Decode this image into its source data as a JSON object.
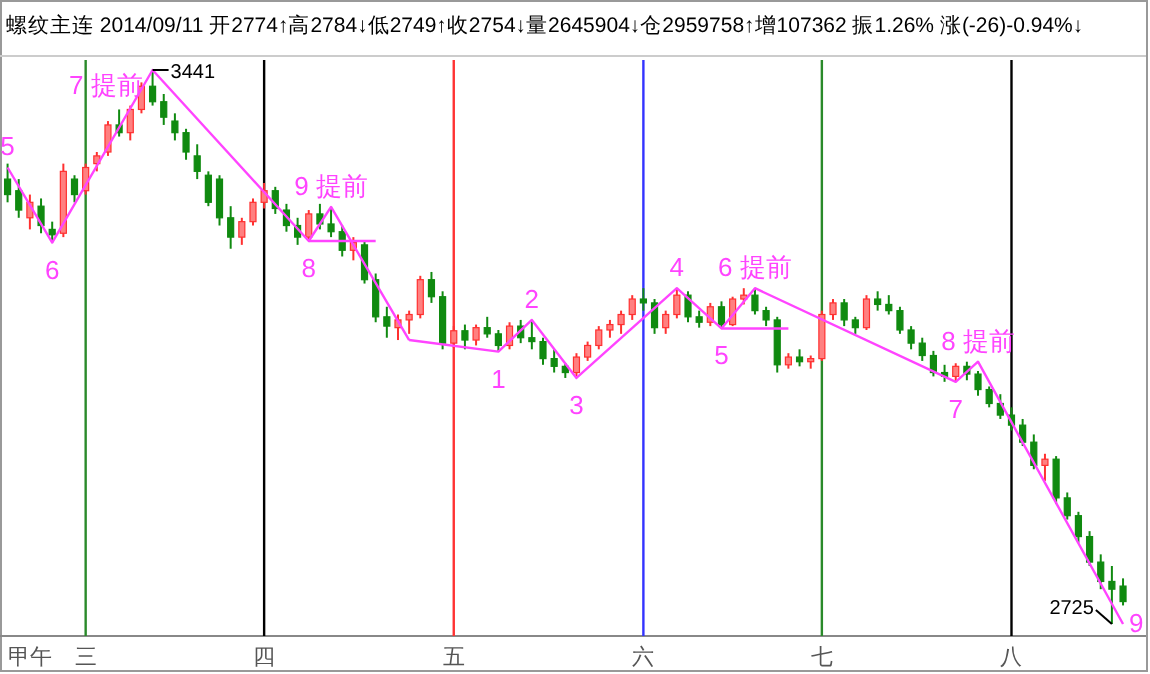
{
  "chart_data": {
    "type": "candlestick",
    "title": "螺纹主连 2014/09/11 开2774↑高2784↓低2749↑收2754↓量2645904↓仓2959758↑增107362 振1.26% 涨(-26)-0.94%↓",
    "categories": [
      null,
      null,
      "甲午",
      null,
      null,
      null,
      null,
      "三",
      null,
      null,
      null,
      null,
      null,
      null,
      null,
      null,
      null,
      null,
      null,
      null,
      null,
      null,
      null,
      "四",
      null,
      null,
      null,
      null,
      null,
      null,
      null,
      null,
      null,
      null,
      null,
      null,
      null,
      null,
      null,
      null,
      "五",
      null,
      null,
      null,
      null,
      null,
      null,
      null,
      null,
      null,
      null,
      null,
      null,
      null,
      null,
      null,
      null,
      "六",
      null,
      null,
      null,
      null,
      null,
      null,
      null,
      null,
      null,
      null,
      null,
      null,
      null,
      null,
      null,
      "七",
      null,
      null,
      null,
      null,
      null,
      null,
      null,
      null,
      null,
      null,
      null,
      null,
      null,
      null,
      null,
      null,
      "八",
      null,
      null,
      null,
      null,
      null,
      null,
      null,
      null,
      null,
      null
    ],
    "ohlc": [
      [
        3300,
        3320,
        3270,
        3280
      ],
      [
        3285,
        3300,
        3250,
        3260
      ],
      [
        3250,
        3280,
        3235,
        3270
      ],
      [
        3265,
        3275,
        3230,
        3240
      ],
      [
        3235,
        3245,
        3218,
        3228
      ],
      [
        3230,
        3320,
        3225,
        3310
      ],
      [
        3300,
        3305,
        3270,
        3280
      ],
      [
        3285,
        3320,
        3280,
        3315
      ],
      [
        3320,
        3335,
        3310,
        3330
      ],
      [
        3335,
        3375,
        3330,
        3370
      ],
      [
        3370,
        3390,
        3355,
        3360
      ],
      [
        3360,
        3395,
        3350,
        3390
      ],
      [
        3390,
        3425,
        3385,
        3420
      ],
      [
        3420,
        3441,
        3395,
        3400
      ],
      [
        3400,
        3410,
        3370,
        3380
      ],
      [
        3375,
        3385,
        3350,
        3360
      ],
      [
        3360,
        3365,
        3325,
        3335
      ],
      [
        3330,
        3345,
        3300,
        3310
      ],
      [
        3305,
        3310,
        3265,
        3270
      ],
      [
        3300,
        3305,
        3240,
        3250
      ],
      [
        3250,
        3265,
        3210,
        3225
      ],
      [
        3225,
        3250,
        3215,
        3245
      ],
      [
        3245,
        3275,
        3240,
        3270
      ],
      [
        3270,
        3295,
        3262,
        3285
      ],
      [
        3285,
        3290,
        3255,
        3262
      ],
      [
        3260,
        3268,
        3232,
        3240
      ],
      [
        3240,
        3250,
        3215,
        3225
      ],
      [
        3225,
        3260,
        3220,
        3255
      ],
      [
        3255,
        3268,
        3235,
        3242
      ],
      [
        3242,
        3264,
        3225,
        3232
      ],
      [
        3232,
        3240,
        3200,
        3208
      ],
      [
        3208,
        3225,
        3195,
        3218
      ],
      [
        3215,
        3220,
        3165,
        3170
      ],
      [
        3170,
        3178,
        3115,
        3122
      ],
      [
        3122,
        3135,
        3095,
        3110
      ],
      [
        3108,
        3125,
        3092,
        3118
      ],
      [
        3118,
        3130,
        3100,
        3125
      ],
      [
        3125,
        3175,
        3120,
        3170
      ],
      [
        3170,
        3180,
        3140,
        3148
      ],
      [
        3148,
        3155,
        3080,
        3088
      ],
      [
        3088,
        3110,
        3082,
        3104
      ],
      [
        3104,
        3112,
        3080,
        3092
      ],
      [
        3092,
        3112,
        3085,
        3108
      ],
      [
        3108,
        3122,
        3095,
        3100
      ],
      [
        3100,
        3105,
        3077,
        3085
      ],
      [
        3085,
        3115,
        3080,
        3110
      ],
      [
        3110,
        3118,
        3088,
        3095
      ],
      [
        3095,
        3118,
        3080,
        3090
      ],
      [
        3090,
        3095,
        3060,
        3068
      ],
      [
        3068,
        3080,
        3050,
        3058
      ],
      [
        3058,
        3062,
        3043,
        3050
      ],
      [
        3050,
        3075,
        3043,
        3070
      ],
      [
        3070,
        3090,
        3065,
        3085
      ],
      [
        3085,
        3110,
        3080,
        3105
      ],
      [
        3105,
        3118,
        3095,
        3112
      ],
      [
        3112,
        3130,
        3100,
        3125
      ],
      [
        3125,
        3150,
        3118,
        3145
      ],
      [
        3145,
        3159,
        3130,
        3140
      ],
      [
        3140,
        3145,
        3100,
        3108
      ],
      [
        3108,
        3130,
        3100,
        3125
      ],
      [
        3125,
        3159,
        3120,
        3150
      ],
      [
        3150,
        3155,
        3115,
        3122
      ],
      [
        3122,
        3130,
        3108,
        3115
      ],
      [
        3115,
        3140,
        3110,
        3135
      ],
      [
        3135,
        3142,
        3107,
        3112
      ],
      [
        3112,
        3148,
        3110,
        3145
      ],
      [
        3145,
        3159,
        3138,
        3150
      ],
      [
        3150,
        3159,
        3125,
        3130
      ],
      [
        3130,
        3135,
        3110,
        3118
      ],
      [
        3118,
        3122,
        3050,
        3060
      ],
      [
        3060,
        3075,
        3055,
        3070
      ],
      [
        3070,
        3080,
        3058,
        3064
      ],
      [
        3064,
        3072,
        3055,
        3068
      ],
      [
        3068,
        3130,
        3065,
        3125
      ],
      [
        3125,
        3145,
        3118,
        3140
      ],
      [
        3140,
        3145,
        3110,
        3118
      ],
      [
        3118,
        3122,
        3100,
        3108
      ],
      [
        3108,
        3150,
        3105,
        3145
      ],
      [
        3145,
        3155,
        3130,
        3138
      ],
      [
        3138,
        3150,
        3125,
        3130
      ],
      [
        3130,
        3135,
        3100,
        3105
      ],
      [
        3105,
        3110,
        3080,
        3088
      ],
      [
        3088,
        3095,
        3065,
        3072
      ],
      [
        3072,
        3078,
        3045,
        3050
      ],
      [
        3050,
        3060,
        3038,
        3045
      ],
      [
        3045,
        3062,
        3038,
        3058
      ],
      [
        3058,
        3064,
        3040,
        3048
      ],
      [
        3048,
        3052,
        3020,
        3028
      ],
      [
        3028,
        3032,
        3005,
        3010
      ],
      [
        3010,
        3022,
        2990,
        2995
      ],
      [
        2995,
        3005,
        2975,
        2982
      ],
      [
        2982,
        2990,
        2955,
        2960
      ],
      [
        2960,
        2970,
        2925,
        2930
      ],
      [
        2930,
        2945,
        2910,
        2938
      ],
      [
        2938,
        2942,
        2880,
        2888
      ],
      [
        2888,
        2895,
        2860,
        2865
      ],
      [
        2865,
        2870,
        2830,
        2838
      ],
      [
        2838,
        2845,
        2800,
        2805
      ],
      [
        2805,
        2815,
        2770,
        2780
      ],
      [
        2780,
        2800,
        2725,
        2770
      ],
      [
        2774,
        2784,
        2749,
        2754
      ]
    ],
    "series": [
      {
        "type": "line",
        "color": "#ff44ff",
        "values": [
          3315,
          null,
          null,
          null,
          3218,
          null,
          null,
          null,
          null,
          null,
          null,
          null,
          null,
          3441,
          null,
          null,
          null,
          null,
          null,
          null,
          null,
          null,
          null,
          null,
          null,
          null,
          null,
          3220,
          null,
          3264,
          null,
          null,
          null,
          null,
          null,
          null,
          3092,
          null,
          null,
          null,
          null,
          null,
          null,
          null,
          null,
          null,
          null,
          null,
          null,
          null,
          null,
          null,
          null,
          null,
          null,
          null,
          null,
          null,
          null,
          null,
          null,
          null,
          null,
          null,
          null,
          null,
          null,
          null,
          null,
          null,
          null,
          null,
          null,
          null,
          null,
          null,
          null,
          null,
          null,
          null,
          null,
          null,
          null,
          null,
          null,
          null,
          null,
          null,
          null,
          null,
          null,
          null,
          null,
          null,
          null,
          null,
          null,
          null,
          null,
          null,
          null
        ]
      },
      {
        "type": "line",
        "color": "#ff44ff",
        "values": [
          null,
          null,
          null,
          null,
          null,
          null,
          null,
          null,
          null,
          null,
          null,
          null,
          null,
          null,
          null,
          null,
          null,
          null,
          null,
          null,
          null,
          null,
          null,
          null,
          null,
          null,
          null,
          null,
          null,
          null,
          null,
          null,
          null,
          null,
          null,
          null,
          3092,
          null,
          null,
          null,
          null,
          null,
          null,
          null,
          3077,
          null,
          null,
          3118,
          null,
          null,
          null,
          3043,
          null,
          null,
          null,
          null,
          null,
          null,
          null,
          null,
          3159,
          null,
          null,
          null,
          3107,
          null,
          null,
          3159,
          null,
          null,
          null,
          null,
          null,
          null,
          null,
          null,
          null,
          null,
          null,
          null,
          null,
          null,
          null,
          null,
          null,
          3038,
          null,
          3064,
          null,
          null,
          null,
          null,
          null,
          null,
          null,
          null,
          null,
          null,
          null,
          null,
          2725
        ]
      },
      {
        "type": "line",
        "color": "#ff44ff",
        "values": [
          null,
          null,
          null,
          null,
          null,
          null,
          null,
          null,
          null,
          null,
          null,
          null,
          null,
          null,
          null,
          null,
          null,
          null,
          null,
          null,
          null,
          null,
          null,
          null,
          null,
          null,
          null,
          3220,
          null,
          null,
          null,
          null,
          null,
          3220,
          null,
          null,
          null,
          null,
          null,
          null,
          null,
          null,
          null,
          null,
          null,
          null,
          null,
          null,
          null,
          null,
          null,
          null,
          null,
          null,
          null,
          null,
          null,
          null,
          null,
          null,
          null,
          null,
          null,
          null,
          null,
          null,
          null,
          null,
          null,
          null,
          null,
          null,
          null,
          null,
          null,
          null,
          null,
          null,
          null,
          null,
          null,
          null,
          null,
          null,
          null,
          null,
          null,
          null,
          null,
          null,
          null,
          null,
          null,
          null,
          null,
          null,
          null,
          null,
          null,
          null,
          null
        ]
      },
      {
        "type": "line",
        "color": "#ff44ff",
        "values": [
          null,
          null,
          null,
          null,
          null,
          null,
          null,
          null,
          null,
          null,
          null,
          null,
          null,
          null,
          null,
          null,
          null,
          null,
          null,
          null,
          null,
          null,
          null,
          null,
          null,
          null,
          null,
          null,
          null,
          null,
          null,
          null,
          null,
          null,
          null,
          null,
          null,
          null,
          null,
          null,
          null,
          null,
          null,
          null,
          null,
          null,
          null,
          null,
          null,
          null,
          null,
          null,
          null,
          null,
          null,
          null,
          null,
          null,
          null,
          null,
          null,
          null,
          null,
          null,
          3107,
          null,
          null,
          null,
          null,
          null,
          3107,
          null,
          null,
          null,
          null,
          null,
          null,
          null,
          null,
          null,
          null,
          null,
          null,
          null,
          null,
          null,
          null,
          null,
          null,
          null,
          null,
          null,
          null,
          null,
          null,
          null,
          null,
          null,
          null,
          null,
          null
        ]
      }
    ],
    "annotations": [
      "5",
      "6",
      "7 提前",
      "8",
      "9 提前",
      "1",
      "2",
      "3",
      "4",
      "5",
      "6 提前",
      "7",
      "8 提前",
      "9",
      "3441",
      "2725"
    ],
    "ref_lines": [
      {
        "axis": "x",
        "value": "三",
        "color": "#2a8a2a"
      },
      {
        "axis": "x",
        "value": "四",
        "color": "#000000"
      },
      {
        "axis": "x",
        "value": "五",
        "color": "#ff3333"
      },
      {
        "axis": "x",
        "value": "六",
        "color": "#3333ff"
      },
      {
        "axis": "x",
        "value": "七",
        "color": "#2a8a2a"
      },
      {
        "axis": "x",
        "value": "八",
        "color": "#000000"
      }
    ],
    "tick_labels": "x"
  }
}
